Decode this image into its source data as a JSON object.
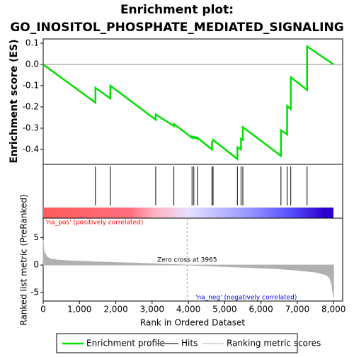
{
  "chart_data": [
    {
      "type": "line",
      "title": "Enrichment plot:",
      "subtitle": "GO_INOSITOL_PHOSPHATE_MEDIATED_SIGNALING",
      "ylabel": "Enrichment score (ES)",
      "xlim": [
        0,
        8250
      ],
      "ylim": [
        -0.47,
        0.12
      ],
      "yticks": [
        0.1,
        {
          "value": 0,
          "label": "0.0"
        },
        -0.1,
        -0.2,
        -0.3,
        -0.4
      ],
      "series": [
        {
          "name": "Enrichment profile",
          "color": "#00e000",
          "x": [
            0,
            1440,
            1440,
            1850,
            1850,
            3100,
            3100,
            3600,
            3600,
            4100,
            4100,
            4150,
            4150,
            4250,
            4250,
            4650,
            4650,
            4680,
            4680,
            5350,
            5350,
            5450,
            5450,
            5500,
            5500,
            6550,
            6550,
            6720,
            6720,
            6820,
            6820,
            7270,
            7270,
            8000
          ],
          "values": [
            0,
            -0.18,
            -0.11,
            -0.16,
            -0.1,
            -0.26,
            -0.235,
            -0.29,
            -0.28,
            -0.345,
            -0.34,
            -0.345,
            -0.34,
            -0.35,
            -0.345,
            -0.4,
            -0.365,
            -0.36,
            -0.355,
            -0.445,
            -0.39,
            -0.4,
            -0.35,
            -0.355,
            -0.295,
            -0.43,
            -0.31,
            -0.33,
            -0.195,
            -0.21,
            -0.06,
            -0.12,
            0.085,
            0
          ]
        }
      ],
      "hits": {
        "name": "Hits",
        "color": "#000000",
        "x": [
          1440,
          1850,
          3100,
          3600,
          4100,
          4150,
          4250,
          4650,
          4680,
          5350,
          5450,
          5500,
          6550,
          6720,
          6820,
          7270
        ]
      }
    },
    {
      "type": "area",
      "xlabel": "Rank in Ordered Dataset",
      "ylabel": "Ranked list metric (PreRanked)",
      "xlim": [
        0,
        8250
      ],
      "xticks": [
        0,
        {
          "value": 1000,
          "label": "1,000"
        },
        {
          "value": 2000,
          "label": "2,000"
        },
        {
          "value": 3000,
          "label": "3,000"
        },
        {
          "value": 4000,
          "label": "4,000"
        },
        {
          "value": 5000,
          "label": "5,000"
        },
        {
          "value": 6000,
          "label": "6,000"
        },
        {
          "value": 7000,
          "label": "7,000"
        },
        {
          "value": 8000,
          "label": "8,000"
        }
      ],
      "ylim": [
        -6.58,
        8.55
      ],
      "yticks": [
        5,
        0,
        -5
      ],
      "series": [
        {
          "name": "Ranking metric scores",
          "color": "#b0b0b0",
          "x": [
            0,
            20,
            100,
            200,
            400,
            800,
            1500,
            2500,
            3500,
            3965,
            4500,
            5500,
            6500,
            7000,
            7500,
            7800,
            7900,
            7950,
            8000
          ],
          "values": [
            4.5,
            2.5,
            1.5,
            1.1,
            0.9,
            0.75,
            0.55,
            0.35,
            0.12,
            0,
            -0.15,
            -0.4,
            -0.7,
            -0.95,
            -1.3,
            -1.8,
            -2.4,
            -3.5,
            -6.0
          ]
        }
      ],
      "annotations": [
        {
          "text": "'na_pos' (positively correlated)",
          "color": "#ff0000"
        },
        {
          "text": "'na_neg' (negatively correlated)",
          "color": "#0000ff"
        },
        {
          "text": "Zero cross at 3965",
          "x": 3965
        }
      ]
    }
  ]
}
